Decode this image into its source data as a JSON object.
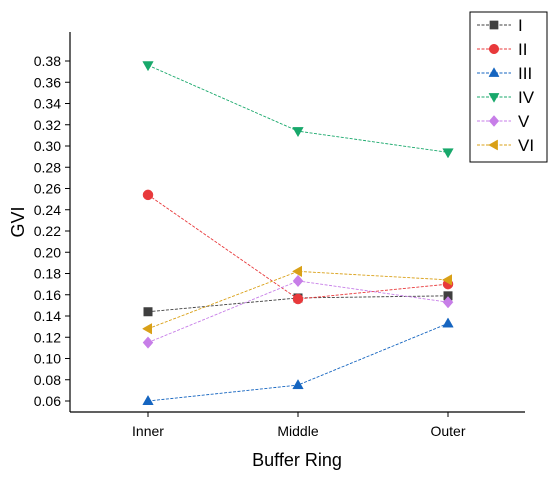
{
  "chart_data": {
    "type": "line",
    "title": "",
    "xlabel": "Buffer Ring",
    "ylabel": "GVI",
    "categories": [
      "Inner",
      "Middle",
      "Outer"
    ],
    "ylim": [
      0.05,
      0.39
    ],
    "yticks": [
      "0.06",
      "0.08",
      "0.10",
      "0.12",
      "0.14",
      "0.16",
      "0.18",
      "0.20",
      "0.22",
      "0.24",
      "0.26",
      "0.28",
      "0.30",
      "0.32",
      "0.34",
      "0.36",
      "0.38"
    ],
    "grid": false,
    "legend_position": "top-right",
    "series": [
      {
        "name": "I",
        "values": [
          0.144,
          0.157,
          0.159
        ],
        "color": "#3f3f3f",
        "marker": "square"
      },
      {
        "name": "II",
        "values": [
          0.254,
          0.156,
          0.17
        ],
        "color": "#e8393b",
        "marker": "circle"
      },
      {
        "name": "III",
        "values": [
          0.06,
          0.075,
          0.133
        ],
        "color": "#1565c0",
        "marker": "triangle-up"
      },
      {
        "name": "IV",
        "values": [
          0.376,
          0.314,
          0.294
        ],
        "color": "#18a86b",
        "marker": "triangle-down"
      },
      {
        "name": "V",
        "values": [
          0.115,
          0.173,
          0.153
        ],
        "color": "#c77ee8",
        "marker": "diamond"
      },
      {
        "name": "VI",
        "values": [
          0.128,
          0.182,
          0.174
        ],
        "color": "#d9a017",
        "marker": "triangle-left"
      }
    ]
  }
}
